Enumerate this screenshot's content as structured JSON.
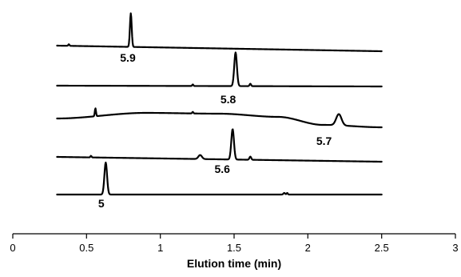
{
  "chart_data": {
    "type": "line",
    "title": "",
    "xlabel": "Elution time (min)",
    "ylabel": "",
    "xlim": [
      0,
      3
    ],
    "x_ticks": [
      "0",
      "0.5",
      "1",
      "1.5",
      "2",
      "2.5",
      "3"
    ],
    "y_ticks_shown": false,
    "grid": false,
    "legend": "none",
    "line_color": "#000000",
    "series": [
      {
        "name": "5.9",
        "x_range": [
          0.3,
          2.5
        ],
        "peaks": [
          {
            "x": 0.38,
            "height": 2,
            "width": 0.004
          },
          {
            "x": 0.8,
            "height": 42,
            "width": 0.006,
            "label": "5.9"
          }
        ],
        "baseline_drift": -7
      },
      {
        "name": "5.8",
        "x_range": [
          0.3,
          2.5
        ],
        "peaks": [
          {
            "x": 1.22,
            "height": 2,
            "width": 0.004
          },
          {
            "x": 1.51,
            "height": 42,
            "width": 0.009,
            "label": "5.8"
          },
          {
            "x": 1.61,
            "height": 3,
            "width": 0.005
          }
        ],
        "baseline_drift": -1
      },
      {
        "name": "5.7",
        "x_range": [
          0.3,
          2.5
        ],
        "peaks": [
          {
            "x": 0.56,
            "height": 10,
            "width": 0.004
          },
          {
            "x": 1.22,
            "height": 2,
            "width": 0.004
          },
          {
            "x": 2.21,
            "height": 14,
            "width": 0.018,
            "label": "5.7"
          }
        ],
        "baseline_profile": [
          [
            0.3,
            0
          ],
          [
            0.9,
            7
          ],
          [
            1.4,
            6
          ],
          [
            1.8,
            2
          ],
          [
            2.1,
            -8
          ],
          [
            2.5,
            -11
          ]
        ]
      },
      {
        "name": "5.6",
        "x_range": [
          0.3,
          2.5
        ],
        "peaks": [
          {
            "x": 0.53,
            "height": 2,
            "width": 0.004
          },
          {
            "x": 1.27,
            "height": 5,
            "width": 0.012
          },
          {
            "x": 1.49,
            "height": 38,
            "width": 0.009,
            "label": "5.6"
          },
          {
            "x": 1.61,
            "height": 4,
            "width": 0.006
          }
        ],
        "baseline_drift": -6
      },
      {
        "name": "5",
        "x_range": [
          0.3,
          2.5
        ],
        "peaks": [
          {
            "x": 0.63,
            "height": 40,
            "width": 0.009,
            "label": "5"
          },
          {
            "x": 1.84,
            "height": 2,
            "width": 0.006
          },
          {
            "x": 1.86,
            "height": 2,
            "width": 0.004
          }
        ],
        "baseline_drift": 0
      }
    ],
    "labels": [
      {
        "text": "5.9",
        "x": 0.78
      },
      {
        "text": "5.8",
        "x": 1.46
      },
      {
        "text": "5.7",
        "x": 2.11
      },
      {
        "text": "5.6",
        "x": 1.42
      },
      {
        "text": "5",
        "x": 0.6
      }
    ]
  }
}
